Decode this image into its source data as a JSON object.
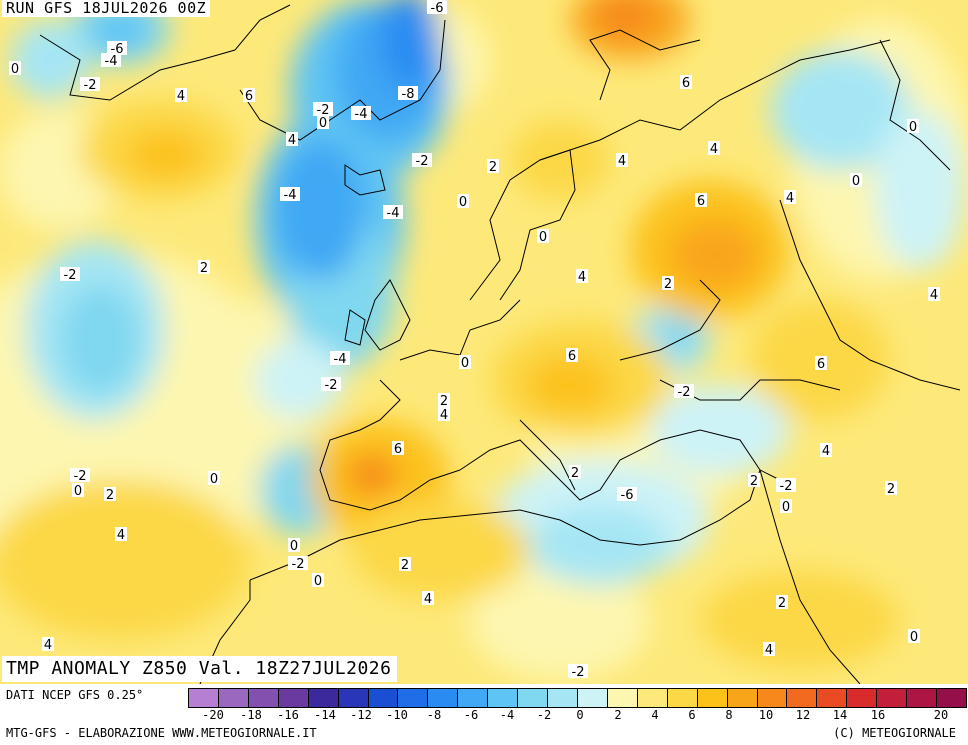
{
  "run_label": "RUN GFS 18JUL2026 00Z",
  "title": "TMP ANOMALY Z850 Val. 18Z27JUL2026",
  "source": "DATI NCEP GFS 0.25°",
  "credit_left": "MTG-GFS - ELABORAZIONE WWW.METEOGIORNALE.IT",
  "credit_right": "(C) METEOGIORNALE",
  "colorbar": {
    "colors": [
      "#b77fd1",
      "#9b68c0",
      "#8450b0",
      "#6a3aa0",
      "#3c2a9c",
      "#2a36b8",
      "#1b4fd3",
      "#1f6ee8",
      "#2a8cf2",
      "#40a8f4",
      "#5ec4f4",
      "#7fd7f0",
      "#a6e6f4",
      "#cdf3f7",
      "#fdf6b0",
      "#fde97a",
      "#fcd846",
      "#fcc21a",
      "#f9a51a",
      "#f6881c",
      "#f26a1f",
      "#e94b22",
      "#d92b2b",
      "#c41f3a",
      "#ad1644",
      "#95104a"
    ],
    "labels": [
      "-20",
      "-18",
      "-16",
      "-14",
      "-12",
      "-10",
      "-8",
      "-6",
      "-4",
      "-2",
      "0",
      "2",
      "4",
      "6",
      "8",
      "10",
      "12",
      "14",
      "16",
      "20"
    ]
  },
  "map_labels": [
    {
      "text": "-6"
    },
    {
      "text": "-4"
    },
    {
      "text": "0"
    },
    {
      "text": "-2"
    },
    {
      "text": "4"
    },
    {
      "text": "6"
    },
    {
      "text": "-6"
    },
    {
      "text": "-4"
    },
    {
      "text": "-8"
    },
    {
      "text": "-2"
    },
    {
      "text": "0"
    },
    {
      "text": "4"
    },
    {
      "text": "-2"
    },
    {
      "text": "2"
    },
    {
      "text": "4"
    },
    {
      "text": "6"
    },
    {
      "text": "4"
    },
    {
      "text": "4"
    },
    {
      "text": "0"
    },
    {
      "text": "0"
    },
    {
      "text": "-4"
    },
    {
      "text": "-4"
    },
    {
      "text": "0"
    },
    {
      "text": "6"
    },
    {
      "text": "-2"
    },
    {
      "text": "2"
    },
    {
      "text": "0"
    },
    {
      "text": "2"
    },
    {
      "text": "4"
    },
    {
      "text": "4"
    },
    {
      "text": "-4"
    },
    {
      "text": "-2"
    },
    {
      "text": "0"
    },
    {
      "text": "6"
    },
    {
      "text": "-2"
    },
    {
      "text": "6"
    },
    {
      "text": "2"
    },
    {
      "text": "4"
    },
    {
      "text": "6"
    },
    {
      "text": "4"
    },
    {
      "text": "-2"
    },
    {
      "text": "0"
    },
    {
      "text": "2"
    },
    {
      "text": "0"
    },
    {
      "text": "2"
    },
    {
      "text": "2"
    },
    {
      "text": "-2"
    },
    {
      "text": "0"
    },
    {
      "text": "2"
    },
    {
      "text": "0"
    },
    {
      "text": "4"
    },
    {
      "text": "-2"
    },
    {
      "text": "0"
    },
    {
      "text": "2"
    },
    {
      "text": "4"
    },
    {
      "text": "2"
    },
    {
      "text": "4"
    },
    {
      "text": "4"
    },
    {
      "text": "0"
    },
    {
      "text": "-2"
    },
    {
      "text": "-6"
    }
  ]
}
